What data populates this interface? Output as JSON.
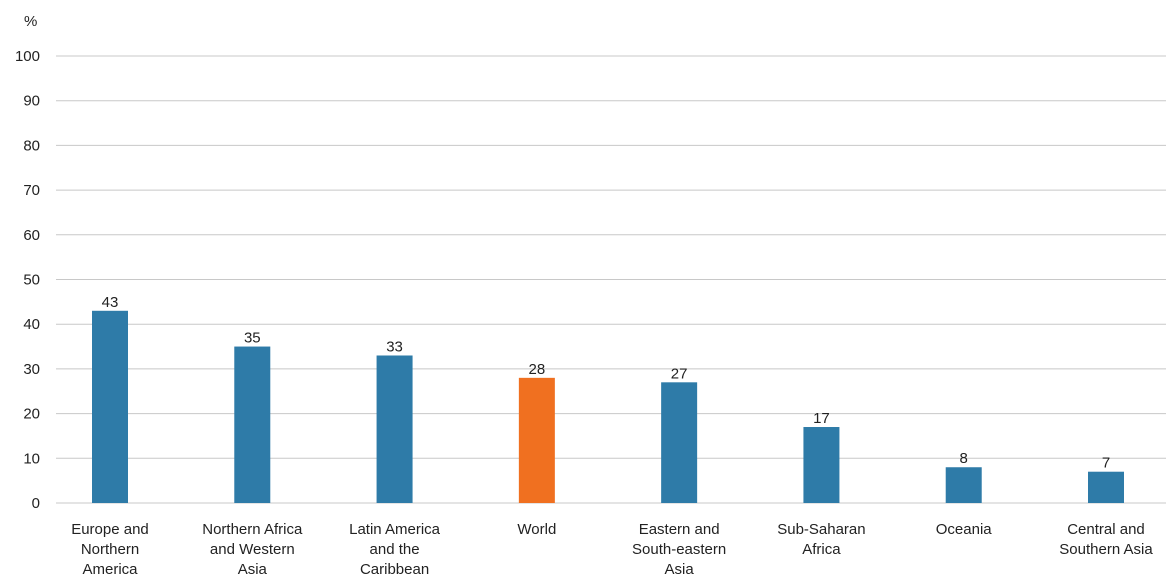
{
  "chart_data": {
    "type": "bar",
    "title": "",
    "ylabel": "%",
    "xlabel": "",
    "ylim": [
      0,
      100
    ],
    "yticks": [
      0,
      10,
      20,
      30,
      40,
      50,
      60,
      70,
      80,
      90,
      100
    ],
    "grid": true,
    "legend": "none",
    "categories": [
      [
        "Europe and",
        "Northern",
        "America"
      ],
      [
        "Northern Africa",
        "and Western",
        "Asia"
      ],
      [
        "Latin America",
        "and the",
        "Caribbean"
      ],
      [
        "World"
      ],
      [
        "Eastern and",
        "South-eastern",
        "Asia"
      ],
      [
        "Sub-Saharan",
        "Africa"
      ],
      [
        "Oceania"
      ],
      [
        "Central and",
        "Southern Asia"
      ]
    ],
    "values": [
      43,
      35,
      33,
      28,
      27,
      17,
      8,
      7
    ],
    "data_labels": [
      "43",
      "35",
      "33",
      "28",
      "27",
      "17",
      "8",
      "7"
    ],
    "highlight_index": 3,
    "colors": {
      "bar": "#2e7ba8",
      "highlight": "#f07020",
      "grid": "#c8c8c8",
      "text": "#222222"
    }
  }
}
